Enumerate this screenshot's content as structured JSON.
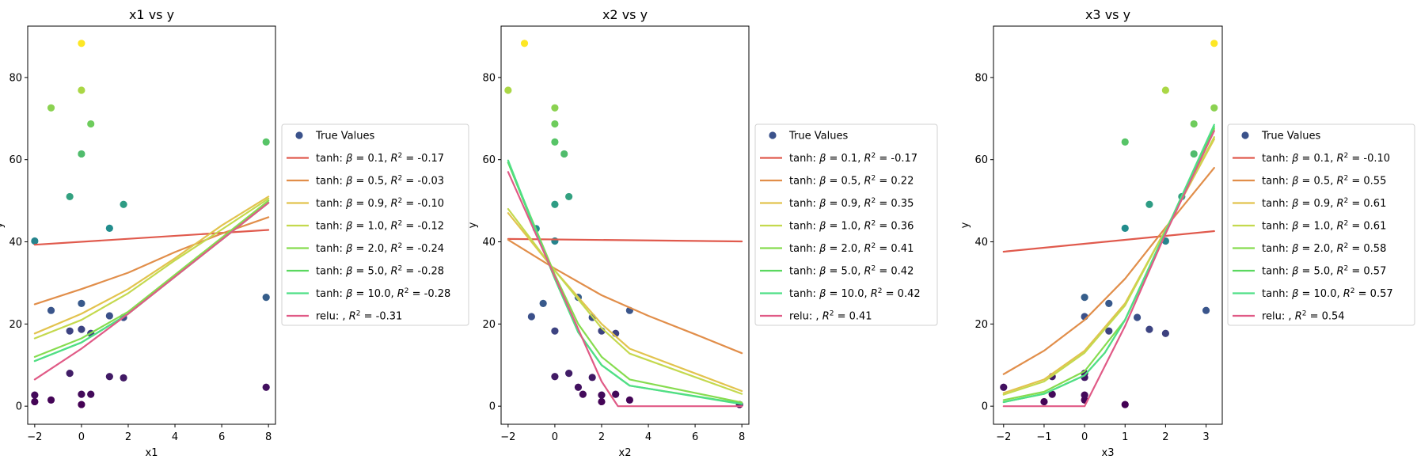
{
  "colors": {
    "cmap": [
      "#440154",
      "#3b528b",
      "#21908d",
      "#5dc963",
      "#fde725"
    ],
    "lines": [
      "#e05a4d",
      "#e18e4a",
      "#e2c34e",
      "#c4d94e",
      "#86dc4f",
      "#5ad85f",
      "#4fdf86",
      "#e05a86"
    ]
  },
  "chart_data": [
    {
      "type": "scatter",
      "title": "x1 vs y",
      "xlabel": "x1",
      "ylabel": "y",
      "xlim": [
        -2.3,
        8.3
      ],
      "ylim": [
        -4.4,
        92.5
      ],
      "xticks": [
        -2,
        0,
        2,
        4,
        6,
        8
      ],
      "yticks": [
        0,
        20,
        40,
        60,
        80
      ],
      "grid": false,
      "legend_position": "right",
      "points": [
        [
          -2,
          1.1
        ],
        [
          -2,
          2.7
        ],
        [
          -2,
          40.2
        ],
        [
          -1.3,
          1.5
        ],
        [
          -1.3,
          23.3
        ],
        [
          -1.3,
          72.6
        ],
        [
          -0.5,
          8.0
        ],
        [
          -0.5,
          18.3
        ],
        [
          -0.5,
          51.0
        ],
        [
          0,
          0.4
        ],
        [
          0,
          2.9
        ],
        [
          0,
          18.7
        ],
        [
          0,
          25.0
        ],
        [
          0,
          61.4
        ],
        [
          0,
          76.9
        ],
        [
          0,
          88.3
        ],
        [
          0.4,
          2.9
        ],
        [
          0.4,
          17.7
        ],
        [
          0.4,
          68.7
        ],
        [
          1.2,
          7.2
        ],
        [
          1.2,
          22.0
        ],
        [
          1.2,
          43.3
        ],
        [
          1.8,
          6.9
        ],
        [
          1.8,
          21.6
        ],
        [
          1.8,
          49.1
        ],
        [
          7.9,
          4.6
        ],
        [
          7.9,
          26.5
        ],
        [
          7.9,
          64.3
        ]
      ],
      "series": [
        {
          "name": "True Values"
        },
        {
          "name": "tanh:  β = 0.1, R² = -0.17",
          "x": [
            -2,
            8
          ],
          "y": [
            39.3,
            42.9
          ]
        },
        {
          "name": "tanh:  β = 0.5, R² = -0.03",
          "x": [
            -2,
            0,
            2,
            4,
            6,
            8
          ],
          "y": [
            24.8,
            28.5,
            32.5,
            37.5,
            42.0,
            46.0
          ]
        },
        {
          "name": "tanh:  β = 0.9, R² = -0.10",
          "x": [
            -2,
            0,
            2,
            4,
            6,
            8
          ],
          "y": [
            17.7,
            22.5,
            28.5,
            36.0,
            44.0,
            51.0
          ]
        },
        {
          "name": "tanh:  β = 1.0, R² = -0.12",
          "x": [
            -2,
            0,
            2,
            4,
            6,
            8
          ],
          "y": [
            16.5,
            21.0,
            27.5,
            35.5,
            43.0,
            50.5
          ]
        },
        {
          "name": "tanh:  β = 2.0, R² = -0.24",
          "x": [
            -2,
            0,
            2,
            4,
            6,
            8
          ],
          "y": [
            12.0,
            16.5,
            23.0,
            32.0,
            41.0,
            50.0
          ]
        },
        {
          "name": "tanh:  β = 5.0, R² = -0.28",
          "x": [
            -2,
            0,
            2,
            4,
            6,
            8
          ],
          "y": [
            11.0,
            15.5,
            22.5,
            31.5,
            40.5,
            49.5
          ]
        },
        {
          "name": "tanh:  β = 10.0, R² = -0.28",
          "x": [
            -2,
            0,
            2,
            4,
            6,
            8
          ],
          "y": [
            11.0,
            15.5,
            22.5,
            31.5,
            40.5,
            49.5
          ]
        },
        {
          "name": "relu: , R² = -0.31",
          "x": [
            -2,
            0,
            2,
            4,
            6,
            8
          ],
          "y": [
            6.5,
            14.0,
            22.5,
            31.5,
            40.5,
            49.5
          ]
        }
      ]
    },
    {
      "type": "scatter",
      "title": "x2 vs y",
      "xlabel": "x2",
      "ylabel": "y",
      "xlim": [
        -2.3,
        8.3
      ],
      "ylim": [
        -4.4,
        92.5
      ],
      "xticks": [
        -2,
        0,
        2,
        4,
        6,
        8
      ],
      "yticks": [
        0,
        20,
        40,
        60,
        80
      ],
      "grid": false,
      "legend_position": "right",
      "points": [
        [
          -2,
          76.9
        ],
        [
          -1.3,
          88.3
        ],
        [
          -1,
          21.8
        ],
        [
          -0.8,
          43.2
        ],
        [
          -0.5,
          25.0
        ],
        [
          0,
          7.2
        ],
        [
          0,
          18.3
        ],
        [
          0,
          40.2
        ],
        [
          0,
          49.1
        ],
        [
          0,
          64.3
        ],
        [
          0,
          68.7
        ],
        [
          0,
          72.6
        ],
        [
          0.4,
          61.4
        ],
        [
          0.6,
          8.0
        ],
        [
          0.6,
          51.0
        ],
        [
          1,
          4.6
        ],
        [
          1,
          26.5
        ],
        [
          1.2,
          2.9
        ],
        [
          1.6,
          7.0
        ],
        [
          1.6,
          21.6
        ],
        [
          2,
          1.1
        ],
        [
          2,
          2.7
        ],
        [
          2,
          18.3
        ],
        [
          2.6,
          2.9
        ],
        [
          2.6,
          17.7
        ],
        [
          3.2,
          1.5
        ],
        [
          3.2,
          23.3
        ],
        [
          7.9,
          0.4
        ]
      ],
      "series": [
        {
          "name": "True Values"
        },
        {
          "name": "tanh:  β = 0.1, R² = -0.17",
          "x": [
            -2,
            8
          ],
          "y": [
            40.7,
            40.1
          ]
        },
        {
          "name": "tanh:  β = 0.5, R² = 0.22",
          "x": [
            -2,
            0,
            2,
            4,
            6,
            8
          ],
          "y": [
            40.5,
            33.5,
            27.0,
            22.0,
            17.5,
            12.9
          ]
        },
        {
          "name": "tanh:  β = 0.9, R² = 0.35",
          "x": [
            -2,
            0,
            2,
            3.2,
            8
          ],
          "y": [
            47.0,
            33.0,
            20.0,
            14.0,
            3.7
          ]
        },
        {
          "name": "tanh:  β = 1.0, R² = 0.36",
          "x": [
            -2,
            0,
            2,
            3.2,
            8
          ],
          "y": [
            48.0,
            33.0,
            19.0,
            12.8,
            3.0
          ]
        },
        {
          "name": "tanh:  β = 2.0, R² = 0.41",
          "x": [
            -2,
            0,
            1,
            2,
            3.2,
            8
          ],
          "y": [
            59.3,
            32.0,
            20.0,
            12.0,
            6.5,
            0.9
          ]
        },
        {
          "name": "tanh:  β = 5.0, R² = 0.42",
          "x": [
            -2,
            0,
            1,
            2,
            3.2,
            8
          ],
          "y": [
            59.3,
            31.0,
            18.0,
            10.0,
            5.0,
            0.6
          ]
        },
        {
          "name": "tanh:  β = 10.0, R² = 0.42",
          "x": [
            -2,
            0,
            1,
            2,
            3.2,
            8
          ],
          "y": [
            59.8,
            31.0,
            18.0,
            10.0,
            5.0,
            0.5
          ]
        },
        {
          "name": "relu: , R² = 0.41",
          "x": [
            -2,
            0,
            2,
            2.7,
            8
          ],
          "y": [
            57.0,
            31.5,
            6.0,
            0,
            0
          ]
        }
      ]
    },
    {
      "type": "scatter",
      "title": "x3 vs y",
      "xlabel": "x3",
      "ylabel": "y",
      "xlim": [
        -2.25,
        3.4
      ],
      "ylim": [
        -4.4,
        92.5
      ],
      "xticks": [
        -2,
        -1,
        0,
        1,
        2,
        3
      ],
      "yticks": [
        0,
        20,
        40,
        60,
        80
      ],
      "grid": false,
      "legend_position": "right",
      "points": [
        [
          -2,
          4.6
        ],
        [
          -1,
          1.1
        ],
        [
          -0.8,
          2.9
        ],
        [
          -0.8,
          7.2
        ],
        [
          0,
          1.5
        ],
        [
          0,
          2.7
        ],
        [
          0,
          7.0
        ],
        [
          0,
          8.0
        ],
        [
          0,
          21.8
        ],
        [
          0,
          26.5
        ],
        [
          0.6,
          18.3
        ],
        [
          0.6,
          25.0
        ],
        [
          1,
          0.4
        ],
        [
          1,
          43.3
        ],
        [
          1,
          64.3
        ],
        [
          1.3,
          21.6
        ],
        [
          1.6,
          18.7
        ],
        [
          1.6,
          49.1
        ],
        [
          2,
          17.7
        ],
        [
          2,
          40.2
        ],
        [
          2,
          76.9
        ],
        [
          2.4,
          51.0
        ],
        [
          2.7,
          61.4
        ],
        [
          2.7,
          68.7
        ],
        [
          3,
          23.3
        ],
        [
          3.2,
          72.6
        ],
        [
          3.2,
          88.3
        ]
      ],
      "series": [
        {
          "name": "True Values"
        },
        {
          "name": "tanh:  β = 0.1, R² = -0.10",
          "x": [
            -2,
            3.2
          ],
          "y": [
            37.6,
            42.6
          ]
        },
        {
          "name": "tanh:  β = 0.5, R² = 0.55",
          "x": [
            -2,
            -1,
            0,
            1,
            2,
            3.2
          ],
          "y": [
            7.8,
            13.5,
            21.0,
            31.0,
            43.5,
            58.0
          ]
        },
        {
          "name": "tanh:  β = 0.9, R² = 0.61",
          "x": [
            -2,
            -1,
            0,
            1,
            2,
            3.2
          ],
          "y": [
            3.2,
            6.5,
            13.5,
            25.0,
            43.0,
            65.0
          ]
        },
        {
          "name": "tanh:  β = 1.0, R² = 0.61",
          "x": [
            -2,
            -1,
            0,
            1,
            2,
            3.2
          ],
          "y": [
            2.8,
            6.0,
            13.0,
            24.5,
            43.0,
            65.5
          ]
        },
        {
          "name": "tanh:  β = 2.0, R² = 0.58",
          "x": [
            -2,
            -1,
            0,
            1,
            2,
            3.2
          ],
          "y": [
            1.5,
            3.5,
            8.5,
            21.0,
            42.0,
            67.5
          ]
        },
        {
          "name": "tanh:  β = 5.0, R² = 0.57",
          "x": [
            -2,
            -1,
            0,
            0.5,
            1,
            2,
            3.2
          ],
          "y": [
            1.0,
            3.0,
            7.5,
            13.0,
            21.0,
            42.5,
            68.0
          ]
        },
        {
          "name": "tanh:  β = 10.0, R² = 0.57",
          "x": [
            -2,
            -1,
            0,
            0.5,
            1,
            2,
            3.2
          ],
          "y": [
            1.0,
            3.0,
            7.5,
            13.0,
            21.0,
            42.5,
            68.5
          ]
        },
        {
          "name": "relu: , R² = 0.54",
          "x": [
            -2,
            0,
            1,
            2,
            3.2
          ],
          "y": [
            0,
            0,
            19.5,
            42.0,
            67.0
          ]
        }
      ]
    }
  ]
}
